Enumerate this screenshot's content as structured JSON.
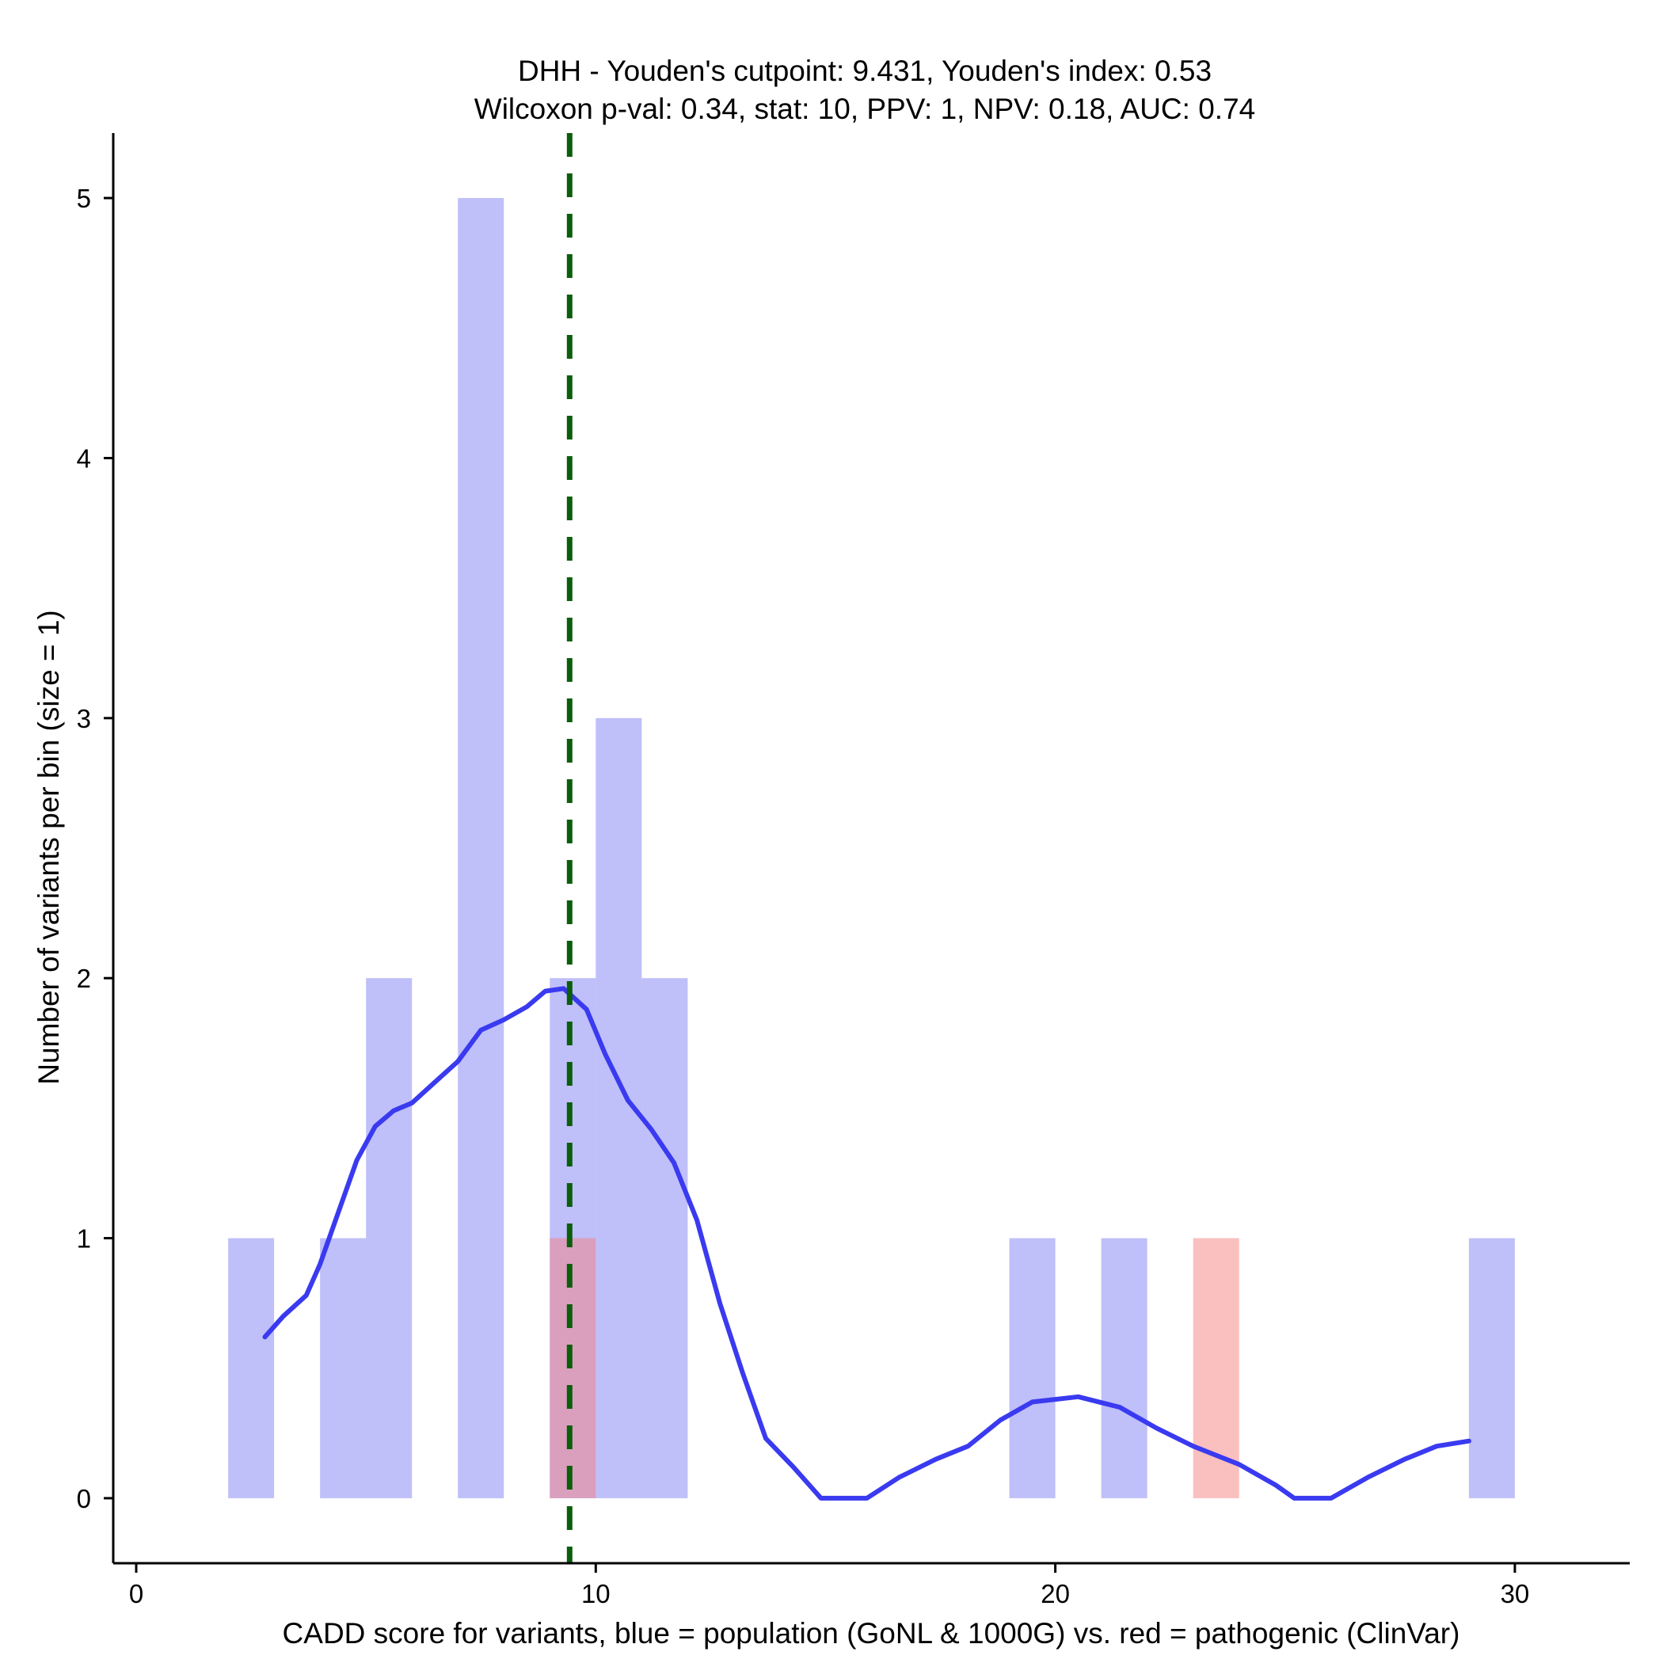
{
  "chart_data": {
    "type": "bar",
    "title_line1": "DHH - Youden's cutpoint: 9.431, Youden's index: 0.53",
    "title_line2": "Wilcoxon p-val: 0.34, stat: 10, PPV: 1, NPV: 0.18, AUC: 0.74",
    "xlabel": "CADD score for variants, blue = population (GoNL & 1000G) vs. red = pathogenic (ClinVar)",
    "ylabel": "Number of variants per bin (size = 1)",
    "xlim": [
      -0.5,
      32.5
    ],
    "ylim": [
      -0.25,
      5.25
    ],
    "xticks": [
      0,
      10,
      20,
      30
    ],
    "yticks": [
      0,
      1,
      2,
      3,
      4,
      5
    ],
    "bin_width": 1,
    "series": [
      {
        "name": "population (GoNL & 1000G)",
        "color": "#8080f5",
        "bins": [
          {
            "start": 2,
            "count": 1
          },
          {
            "start": 4,
            "count": 1
          },
          {
            "start": 5,
            "count": 2
          },
          {
            "start": 7,
            "count": 5
          },
          {
            "start": 9,
            "count": 2
          },
          {
            "start": 10,
            "count": 3
          },
          {
            "start": 11,
            "count": 2
          },
          {
            "start": 19,
            "count": 1
          },
          {
            "start": 21,
            "count": 1
          },
          {
            "start": 29,
            "count": 1
          }
        ]
      },
      {
        "name": "pathogenic (ClinVar)",
        "color": "#f58080",
        "bins": [
          {
            "start": 9,
            "count": 1
          },
          {
            "start": 23,
            "count": 1
          }
        ]
      }
    ],
    "density_curve": {
      "color": "#3a3af0",
      "points": [
        [
          2.8,
          0.62
        ],
        [
          3.2,
          0.7
        ],
        [
          3.7,
          0.78
        ],
        [
          4.0,
          0.9
        ],
        [
          4.4,
          1.1
        ],
        [
          4.8,
          1.3
        ],
        [
          5.2,
          1.43
        ],
        [
          5.6,
          1.49
        ],
        [
          6.0,
          1.52
        ],
        [
          6.5,
          1.6
        ],
        [
          7.0,
          1.68
        ],
        [
          7.5,
          1.8
        ],
        [
          8.0,
          1.84
        ],
        [
          8.5,
          1.89
        ],
        [
          8.9,
          1.95
        ],
        [
          9.3,
          1.96
        ],
        [
          9.8,
          1.88
        ],
        [
          10.2,
          1.71
        ],
        [
          10.7,
          1.53
        ],
        [
          11.2,
          1.42
        ],
        [
          11.7,
          1.29
        ],
        [
          12.2,
          1.07
        ],
        [
          12.7,
          0.75
        ],
        [
          13.2,
          0.48
        ],
        [
          13.7,
          0.23
        ],
        [
          14.3,
          0.12
        ],
        [
          14.9,
          0.0
        ],
        [
          15.9,
          0.0
        ],
        [
          16.6,
          0.08
        ],
        [
          17.4,
          0.15
        ],
        [
          18.1,
          0.2
        ],
        [
          18.8,
          0.3
        ],
        [
          19.5,
          0.37
        ],
        [
          20.5,
          0.39
        ],
        [
          21.4,
          0.35
        ],
        [
          22.2,
          0.27
        ],
        [
          23.0,
          0.2
        ],
        [
          24.0,
          0.13
        ],
        [
          24.8,
          0.05
        ],
        [
          25.2,
          0.0
        ],
        [
          26.0,
          0.0
        ],
        [
          26.8,
          0.08
        ],
        [
          27.6,
          0.15
        ],
        [
          28.3,
          0.2
        ],
        [
          29.0,
          0.22
        ]
      ]
    },
    "cutpoint": {
      "x": 9.431,
      "color": "#0b5e0b"
    }
  }
}
